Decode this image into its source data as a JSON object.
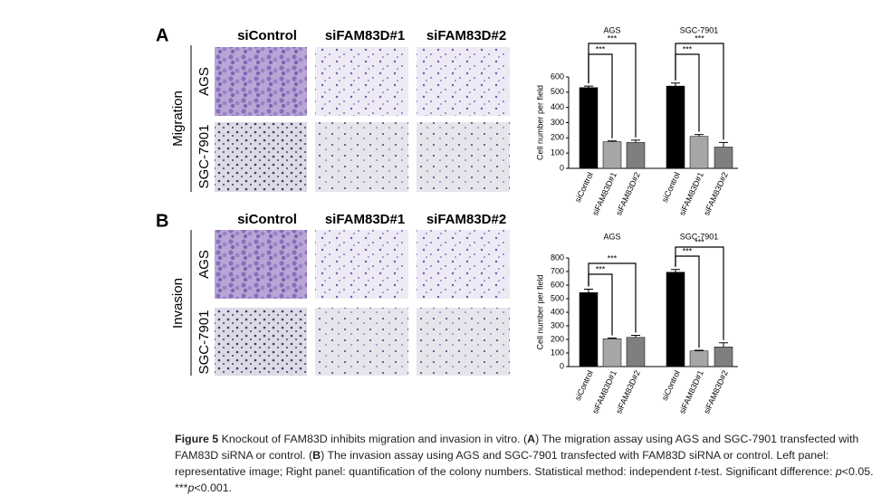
{
  "panel_a": {
    "label": "A",
    "columns": [
      "siControl",
      "siFAM83D#1",
      "siFAM83D#2"
    ],
    "rows": [
      "AGS",
      "SGC-7901"
    ],
    "assay": "Migration"
  },
  "panel_b": {
    "label": "B",
    "columns": [
      "siControl",
      "siFAM83D#1",
      "siFAM83D#2"
    ],
    "rows": [
      "AGS",
      "SGC-7901"
    ],
    "assay": "Invasion"
  },
  "chart_data": [
    {
      "type": "bar",
      "y_label": "Cell number per field",
      "groups": [
        "AGS",
        "SGC-7901"
      ],
      "categories": [
        "siControl",
        "siFAM83D#1",
        "siFAM83D#2",
        "siControl",
        "siFAM83D#1",
        "siFAM83D#2"
      ],
      "values": [
        530,
        175,
        170,
        540,
        210,
        140
      ],
      "errors": [
        10,
        5,
        15,
        20,
        12,
        30
      ],
      "colors": [
        "#000000",
        "#a6a6a6",
        "#7f7f7f",
        "#000000",
        "#a6a6a6",
        "#7f7f7f"
      ],
      "annotations": [
        "***",
        "***",
        "***",
        "***"
      ],
      "ylim": [
        0,
        600
      ],
      "yticks": [
        0,
        100,
        200,
        300,
        400,
        500,
        600
      ]
    },
    {
      "type": "bar",
      "y_label": "Cell number per field",
      "groups": [
        "AGS",
        "SGC-7901"
      ],
      "categories": [
        "siControl",
        "siFAM83D#1",
        "siFAM83D#2",
        "siControl",
        "siFAM83D#1",
        "siFAM83D#2"
      ],
      "values": [
        545,
        205,
        215,
        695,
        115,
        145
      ],
      "errors": [
        25,
        5,
        15,
        20,
        5,
        30
      ],
      "colors": [
        "#000000",
        "#a6a6a6",
        "#7f7f7f",
        "#000000",
        "#a6a6a6",
        "#7f7f7f"
      ],
      "annotations": [
        "***",
        "***",
        "***",
        "***"
      ],
      "ylim": [
        0,
        800
      ],
      "yticks": [
        0,
        100,
        200,
        300,
        400,
        500,
        600,
        700,
        800
      ]
    }
  ],
  "caption": [
    "Figure 5",
    " Knockout of FAM83D inhibits migration and invasion in vitro. (",
    "A",
    ") The migration assay using AGS and SGC-7901 transfected with FAM83D siRNA or control. (",
    "B",
    ") The invasion assay using AGS and SGC-7901 transfected with FAM83D siRNA or control. Left panel: representative image; Right panel: quantification of the colony numbers. Statistical method: independent ",
    "t",
    "-test. Significant difference: ",
    "p",
    "<0.05. ***",
    "p",
    "<0.001."
  ]
}
